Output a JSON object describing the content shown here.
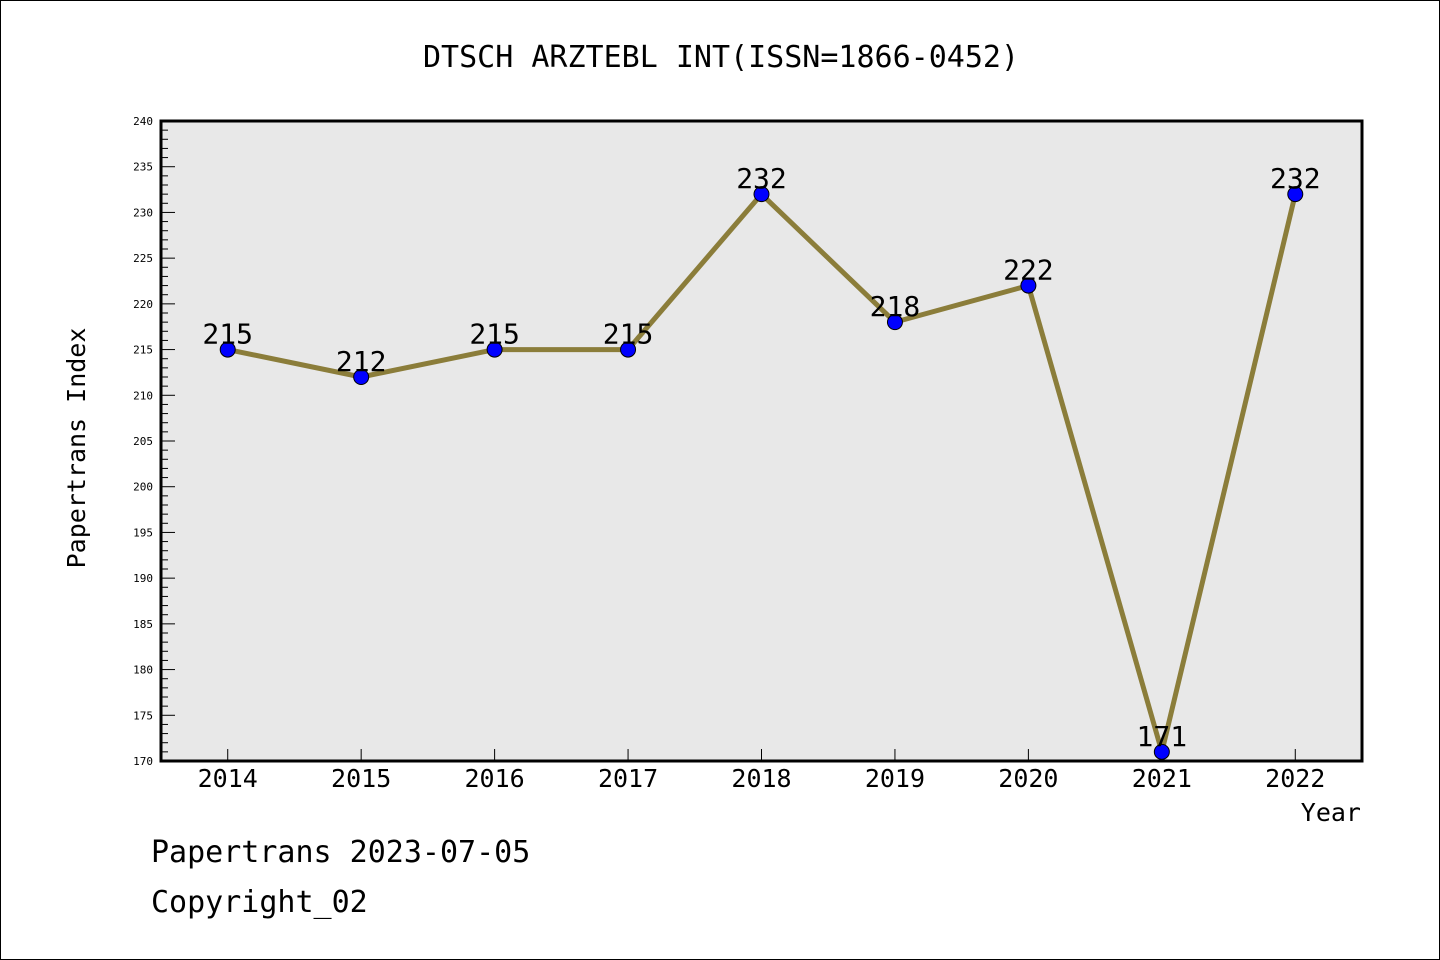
{
  "chart_data": {
    "type": "line",
    "title": "DTSCH ARZTEBL INT(ISSN=1866-0452)",
    "xlabel": "Year",
    "ylabel": "Papertrans Index",
    "x": [
      "2014",
      "2015",
      "2016",
      "2017",
      "2018",
      "2019",
      "2020",
      "2021",
      "2022"
    ],
    "series": [
      {
        "values": [
          215,
          212,
          215,
          215,
          232,
          218,
          222,
          171,
          232
        ],
        "data_labels": [
          "215",
          "212",
          "215",
          "215",
          "232",
          "218",
          "222",
          "171",
          "232"
        ]
      }
    ],
    "ylim": [
      170,
      240
    ],
    "yticks": [
      "170",
      "175",
      "180",
      "185",
      "190",
      "195",
      "200",
      "205",
      "210",
      "215",
      "220",
      "225",
      "230",
      "235",
      "240"
    ],
    "grid": false,
    "legend": "none",
    "colors": {
      "line": "#8b7d3a",
      "marker": "#0000ff",
      "plot_background": "#e8e8e8"
    }
  },
  "footer": {
    "stamp": "Papertrans 2023-07-05",
    "copyright": "Copyright_02"
  }
}
